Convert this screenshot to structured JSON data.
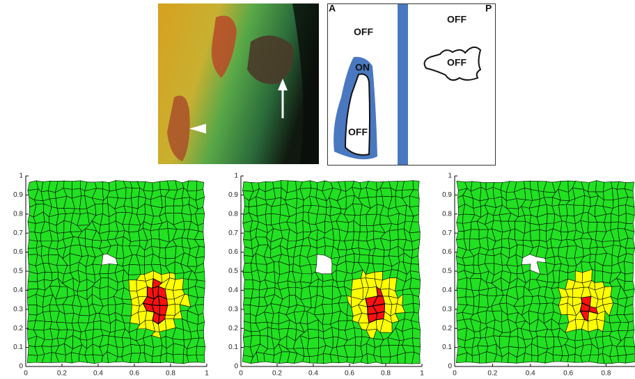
{
  "diagram": {
    "labels": [
      "A",
      "P",
      "OFF",
      "ON",
      "OFF",
      "OFF",
      "OFF"
    ]
  },
  "chart_data": [
    {
      "type": "mesh",
      "xlim": [
        0,
        1
      ],
      "ylim": [
        0,
        1
      ],
      "xticks": [
        0,
        0.2,
        0.4,
        0.6,
        0.8,
        1
      ],
      "yticks": [
        0,
        0.1,
        0.2,
        0.3,
        0.4,
        0.5,
        0.6,
        0.7,
        0.8,
        0.9,
        1
      ]
    },
    {
      "type": "mesh",
      "xlim": [
        0,
        1
      ],
      "ylim": [
        0,
        1
      ],
      "xticks": [
        0,
        0.2,
        0.4,
        0.6,
        0.8,
        1
      ],
      "yticks": [
        0,
        0.1,
        0.2,
        0.3,
        0.4,
        0.5,
        0.6,
        0.7,
        0.8,
        0.9,
        1
      ]
    },
    {
      "type": "mesh",
      "xlim": [
        0,
        0.96
      ],
      "ylim": [
        0,
        1
      ],
      "xticks": [
        0,
        0.2,
        0.4,
        0.6,
        0.8
      ],
      "yticks": [
        0,
        0.1,
        0.2,
        0.3,
        0.4,
        0.5,
        0.6,
        0.7,
        0.8,
        0.9,
        1
      ]
    }
  ]
}
